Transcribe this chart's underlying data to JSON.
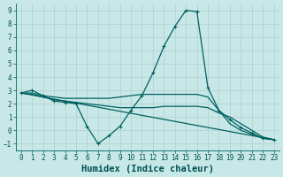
{
  "xlabel": "Humidex (Indice chaleur)",
  "xlim": [
    -0.5,
    23.5
  ],
  "ylim": [
    -1.5,
    9.5
  ],
  "background_color": "#c8e8e8",
  "line_color": "#006060",
  "grid_color": "#b0d0d0",
  "curve1": {
    "x": [
      0,
      1,
      2,
      3,
      4,
      5,
      6,
      7,
      8,
      9,
      10,
      11,
      12,
      13,
      14,
      15,
      16,
      17,
      18,
      19,
      20,
      21,
      22,
      23
    ],
    "y": [
      2.8,
      3.0,
      2.6,
      2.2,
      2.1,
      2.0,
      0.3,
      -1.0,
      -0.4,
      0.3,
      1.5,
      2.6,
      4.3,
      6.3,
      7.8,
      9.0,
      8.9,
      3.2,
      1.5,
      0.8,
      0.2,
      -0.2,
      -0.6,
      -0.7
    ],
    "has_markers": true
  },
  "curve2": {
    "x": [
      0,
      1,
      2,
      3,
      4,
      5,
      6,
      7,
      8,
      9,
      10,
      11,
      12,
      13,
      14,
      15,
      16,
      17,
      18,
      19,
      20,
      21,
      22,
      23
    ],
    "y": [
      2.8,
      2.8,
      2.6,
      2.5,
      2.4,
      2.4,
      2.4,
      2.4,
      2.4,
      2.5,
      2.6,
      2.7,
      2.7,
      2.7,
      2.7,
      2.7,
      2.7,
      2.5,
      1.5,
      0.5,
      0.0,
      -0.3,
      -0.6,
      -0.7
    ],
    "has_markers": false
  },
  "curve3": {
    "x": [
      0,
      23
    ],
    "y": [
      2.8,
      -0.7
    ],
    "has_markers": false
  },
  "curve4": {
    "x": [
      0,
      1,
      2,
      3,
      4,
      5,
      6,
      7,
      8,
      9,
      10,
      11,
      12,
      13,
      14,
      15,
      16,
      17,
      18,
      19,
      20,
      21,
      22,
      23
    ],
    "y": [
      2.8,
      2.7,
      2.5,
      2.3,
      2.2,
      2.1,
      2.0,
      1.9,
      1.8,
      1.7,
      1.7,
      1.7,
      1.7,
      1.8,
      1.8,
      1.8,
      1.8,
      1.7,
      1.3,
      1.0,
      0.5,
      0.0,
      -0.5,
      -0.7
    ],
    "has_markers": false
  },
  "yticks": [
    -1,
    0,
    1,
    2,
    3,
    4,
    5,
    6,
    7,
    8,
    9
  ],
  "xticks": [
    0,
    1,
    2,
    3,
    4,
    5,
    6,
    7,
    8,
    9,
    10,
    11,
    12,
    13,
    14,
    15,
    16,
    17,
    18,
    19,
    20,
    21,
    22,
    23
  ],
  "marker": "+",
  "markersize": 3,
  "linewidth": 0.9,
  "font_color": "#005050",
  "tick_labelsize": 5.5,
  "xlabel_fontsize": 7.5
}
